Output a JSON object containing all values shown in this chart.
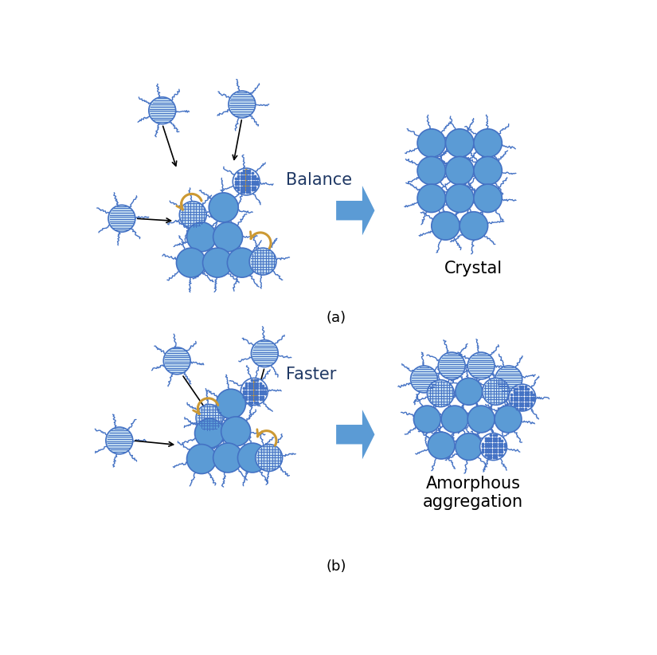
{
  "bg_color": "#ffffff",
  "blue_solid": "#5B9BD5",
  "blue_light": "#BDD7EE",
  "blue_line": "#4472C4",
  "orange": "#CC9933",
  "label_a": "(a)",
  "label_b": "(b)",
  "text_balance": "Balance",
  "text_faster": "Faster",
  "text_crystal": "Crystal",
  "text_amorphous1": "Amorphous",
  "text_amorphous2": "aggregation",
  "fig_width": 8.25,
  "fig_height": 8.22,
  "dpi": 100
}
